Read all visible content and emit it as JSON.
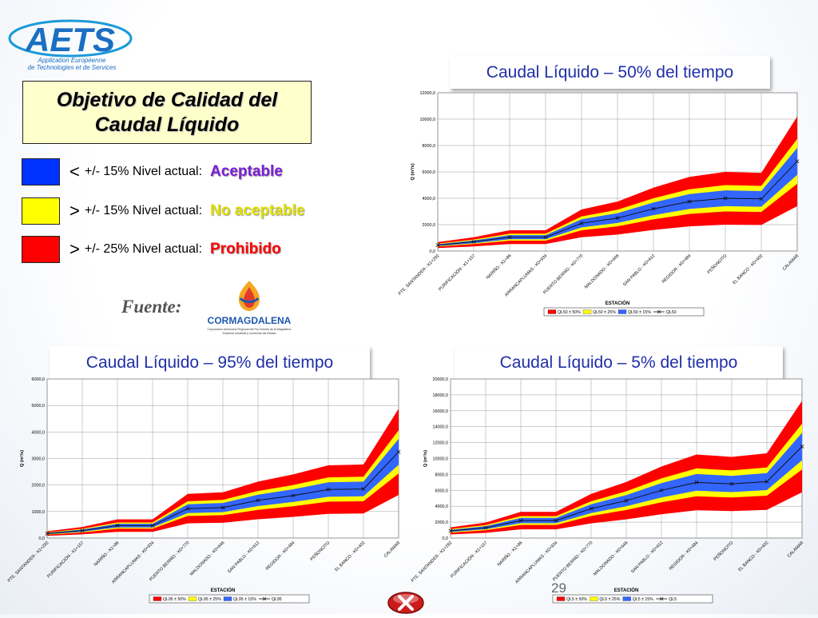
{
  "logo": {
    "text": "AETS",
    "tagline_1": "Application Européenne",
    "tagline_2": "de Technologies et de Services"
  },
  "quality_box": {
    "line1": "Objetivo de Calidad del",
    "line2": "Caudal Líquido"
  },
  "legend_rows": [
    {
      "symbol": "<",
      "text": "+/- 15% Nivel actual:",
      "status": "Aceptable",
      "swatch_color": "#0033ff",
      "status_color": "#7a1fd6"
    },
    {
      "symbol": ">",
      "text": "+/-  15% Nivel actual:",
      "status": "No aceptable",
      "swatch_color": "#ffff00",
      "status_color": "#e0e000"
    },
    {
      "symbol": ">",
      "text": "+/- 25% Nivel actual:",
      "status": "Prohibido",
      "swatch_color": "#ff0000",
      "status_color": "#ff0000"
    }
  ],
  "fuente": {
    "label": "Fuente:",
    "logo_name": "CORMAGDALENA",
    "logo_sub1": "Corporación Autónoma Regional del Río Grande de la Magdalena",
    "logo_sub2": "Empresa industrial y comercial del Estado"
  },
  "page_number": "29",
  "colors": {
    "red": "#ff0000",
    "yellow": "#ffff00",
    "blue": "#3366ff",
    "title_text": "#1f2fa8"
  },
  "chart_data": [
    {
      "id": "ql50",
      "type": "area",
      "title": "Caudal Líquido – 50% del tiempo",
      "xlabel": "ESTACIÓN",
      "ylabel": "Q (m³/s)",
      "ylim": [
        0,
        12000
      ],
      "ytick_step": 2000,
      "categories": [
        "PTE. SANTANDER - K1+292",
        "PURIFICACIÓN - K1+157",
        "NARIÑO - K1+86",
        "ARRANCAPLUMAS - K0+934",
        "PUERTO BERRÍO - K0+770",
        "MALDONADO - K0+646",
        "SAN PABLO - K0+612",
        "REGIDOR - K0+484",
        "PEÑONCITO",
        "EL BANCO - K0+402",
        "CALAMAR"
      ],
      "values": [
        450,
        700,
        1050,
        1050,
        2100,
        2500,
        3200,
        3750,
        4000,
        3950,
        6800
      ],
      "bands": [
        {
          "name": "QL50 ± 50%",
          "pct": 0.5,
          "color": "#ff0000"
        },
        {
          "name": "QL50 ± 25%",
          "pct": 0.25,
          "color": "#ffff00"
        },
        {
          "name": "QL50 ± 15%",
          "pct": 0.15,
          "color": "#3366ff"
        }
      ],
      "line_name": "QL50",
      "legend_position": "bottom",
      "grid": true
    },
    {
      "id": "ql95",
      "type": "area",
      "title": "Caudal Líquido – 95% del tiempo",
      "xlabel": "ESTACIÓN",
      "ylabel": "Q (m³/s)",
      "ylim": [
        0,
        6000
      ],
      "ytick_step": 1000,
      "categories": [
        "PTE. SANTANDER - K1+292",
        "PURIFICACIÓN - K1+157",
        "NARIÑO - K1+86",
        "ARRANCAPLUMAS - K0+934",
        "PUERTO BERRÍO - K0+770",
        "MALDONADO - K0+646",
        "SAN PABLO - K0+612",
        "REGIDOR - K0+484",
        "PEÑONCITO",
        "EL BANCO - K0+402",
        "CALAMAR"
      ],
      "values": [
        170,
        280,
        470,
        470,
        1110,
        1150,
        1420,
        1600,
        1830,
        1850,
        3250
      ],
      "bands": [
        {
          "name": "QL95 ± 50%",
          "pct": 0.5,
          "color": "#ff0000"
        },
        {
          "name": "QL95 ± 25%",
          "pct": 0.25,
          "color": "#ffff00"
        },
        {
          "name": "QL95 ± 15%",
          "pct": 0.15,
          "color": "#3366ff"
        }
      ],
      "line_name": "QL95",
      "legend_position": "bottom",
      "grid": true
    },
    {
      "id": "ql5",
      "type": "area",
      "title": "Caudal Líquido  – 5% del tiempo",
      "xlabel": "ESTACIÓN",
      "ylabel": "Q (m³/s)",
      "ylim": [
        0,
        20000
      ],
      "ytick_step": 2000,
      "categories": [
        "PTE. SANTANDER - K1+292",
        "PURIFICACIÓN - K1+157",
        "NARIÑO - K1+86",
        "ARRANCAPLUMAS - K0+934",
        "PUERTO BERRÍO - K0+770",
        "MALDONADO - K0+646",
        "SAN PABLO - K0+612",
        "REGIDOR - K0+484",
        "PEÑONCITO",
        "EL BANCO - K0+402",
        "CALAMAR"
      ],
      "values": [
        900,
        1300,
        2200,
        2200,
        3700,
        4700,
        6000,
        7000,
        6800,
        7100,
        11500
      ],
      "bands": [
        {
          "name": "QL5 ± 50%",
          "pct": 0.5,
          "color": "#ff0000"
        },
        {
          "name": "QL5 ± 25%",
          "pct": 0.25,
          "color": "#ffff00"
        },
        {
          "name": "QL5 ± 15%",
          "pct": 0.15,
          "color": "#3366ff"
        }
      ],
      "line_name": "QL5",
      "legend_position": "bottom",
      "grid": true
    }
  ]
}
